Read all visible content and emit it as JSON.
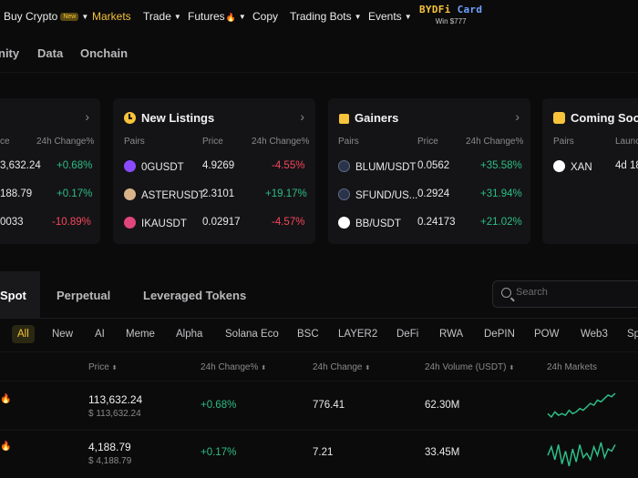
{
  "nav": {
    "items": [
      {
        "label": "Buy Crypto",
        "badge": "New",
        "caret": true
      },
      {
        "label": "Markets",
        "active": true
      },
      {
        "label": "Trade",
        "caret": true
      },
      {
        "label": "Futures",
        "fire": true,
        "caret": true
      },
      {
        "label": "Copy"
      },
      {
        "label": "Trading Bots",
        "caret": true
      },
      {
        "label": "Events",
        "caret": true
      }
    ],
    "promo": {
      "title_a": "BYDFi",
      "title_b": "Card",
      "sub": "Win $777"
    }
  },
  "subnav": [
    "nity",
    "Data",
    "Onchain"
  ],
  "cards": {
    "hot": {
      "headers": [
        "ce",
        "24h Change%"
      ],
      "rows": [
        {
          "price": "3,632.24",
          "change": "+0.68%",
          "dir": "up"
        },
        {
          "price": "188.79",
          "change": "+0.17%",
          "dir": "up"
        },
        {
          "price": "0033",
          "change": "-10.89%",
          "dir": "down"
        }
      ]
    },
    "new_listings": {
      "title": "New Listings",
      "headers": [
        "Pairs",
        "Price",
        "24h Change%"
      ],
      "rows": [
        {
          "pair": "0GUSDT",
          "price": "4.9269",
          "change": "-4.55%",
          "dir": "down",
          "icon_color": "#8a4bff"
        },
        {
          "pair": "ASTERUSDT",
          "price": "2.3101",
          "change": "+19.17%",
          "dir": "up",
          "icon_color": "#d9b48a"
        },
        {
          "pair": "IKAUSDT",
          "price": "0.02917",
          "change": "-4.57%",
          "dir": "down",
          "icon_color": "#e0457b"
        }
      ]
    },
    "gainers": {
      "title": "Gainers",
      "headers": [
        "Pairs",
        "Price",
        "24h Change%"
      ],
      "rows": [
        {
          "pair": "BLUM/USDT",
          "price": "0.0562",
          "change": "+35.58%",
          "dir": "up",
          "icon_color": "#3b4a66"
        },
        {
          "pair": "SFUND/US...",
          "price": "0.2924",
          "change": "+31.94%",
          "dir": "up",
          "icon_color": "#3b4a66"
        },
        {
          "pair": "BB/USDT",
          "price": "0.24173",
          "change": "+21.02%",
          "dir": "up",
          "icon_color": "#ffffff"
        }
      ]
    },
    "coming_soon": {
      "title": "Coming Soon",
      "headers": [
        "Pairs",
        "Launc"
      ],
      "rows": [
        {
          "pair": "XAN",
          "launch": "4d 18",
          "icon_color": "#ffffff"
        }
      ]
    }
  },
  "tabs": [
    "Spot",
    "Perpetual",
    "Leveraged Tokens"
  ],
  "search": {
    "placeholder": "Search"
  },
  "filters": [
    "All",
    "New",
    "AI",
    "Meme",
    "Alpha",
    "Solana Eco",
    "BSC",
    "LAYER2",
    "DeFi",
    "RWA",
    "DePIN",
    "POW",
    "Web3",
    "Sp"
  ],
  "table": {
    "headers": [
      "Price",
      "24h Change%",
      "24h Change",
      "24h Volume (USDT)",
      "24h Markets"
    ],
    "rows": [
      {
        "price": "113,632.24",
        "price_usd": "$ 113,632.24",
        "change_pct": "+0.68%",
        "change": "776.41",
        "volume": "62.30M",
        "spark": [
          6,
          4,
          7,
          5,
          6,
          5,
          8,
          6,
          7,
          9,
          8,
          10,
          12,
          11,
          14,
          13,
          15,
          17,
          16,
          18
        ]
      },
      {
        "price": "4,188.79",
        "price_usd": "$ 4,188.79",
        "change_pct": "+0.17%",
        "change": "7.21",
        "volume": "33.45M",
        "spark": [
          10,
          14,
          8,
          15,
          6,
          12,
          5,
          13,
          7,
          15,
          9,
          11,
          8,
          14,
          10,
          16,
          9,
          13,
          12,
          15
        ]
      }
    ]
  },
  "colors": {
    "accent": "#f6c33a",
    "up": "#2ebd85",
    "down": "#f6465d"
  }
}
